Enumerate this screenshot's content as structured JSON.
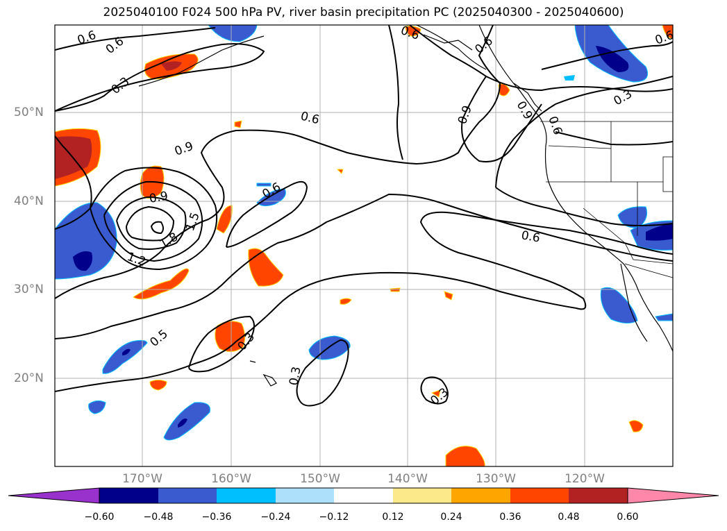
{
  "title": "2025040100 F024 500 hPa PV, river basin precipitation PC (2025040300 - 2025040600)",
  "lat_labels": [
    "50°N",
    "40°N",
    "30°N",
    "20°N"
  ],
  "lon_labels": [
    "170°W",
    "160°W",
    "150°W",
    "140°W",
    "130°W",
    "120°W"
  ],
  "contour_labels": [
    "0.6",
    "0.6",
    "0.3",
    "0.9",
    "0.6",
    "0.9",
    "0.6",
    "0.6",
    "0.9",
    "1.5",
    "1.8",
    "1.2",
    "0.5",
    "0.3",
    "0.3",
    "0.6",
    "0.3",
    "0.3",
    "0.6",
    "0.9",
    "0.6",
    "0.6"
  ],
  "colorbar": {
    "ticks": [
      "−0.60",
      "−0.48",
      "−0.36",
      "−0.24",
      "−0.12",
      "0.12",
      "0.24",
      "0.36",
      "0.48",
      "0.60"
    ],
    "colors": [
      "#9932cc",
      "#00008b",
      "#3a5bd0",
      "#00bfff",
      "#ade0fa",
      "#ffffff",
      "#fce98a",
      "#ffa500",
      "#ff4500",
      "#b22222",
      "#ff88aa"
    ]
  },
  "legend_colors": {
    "strong_negative": "#00008b",
    "moderate_negative": "#3a5bd0",
    "weak_negative": "#00bfff",
    "strong_positive": "#b22222",
    "moderate_positive": "#ff4500",
    "weak_positive": "#ffa500",
    "faint_positive": "#fce98a"
  }
}
